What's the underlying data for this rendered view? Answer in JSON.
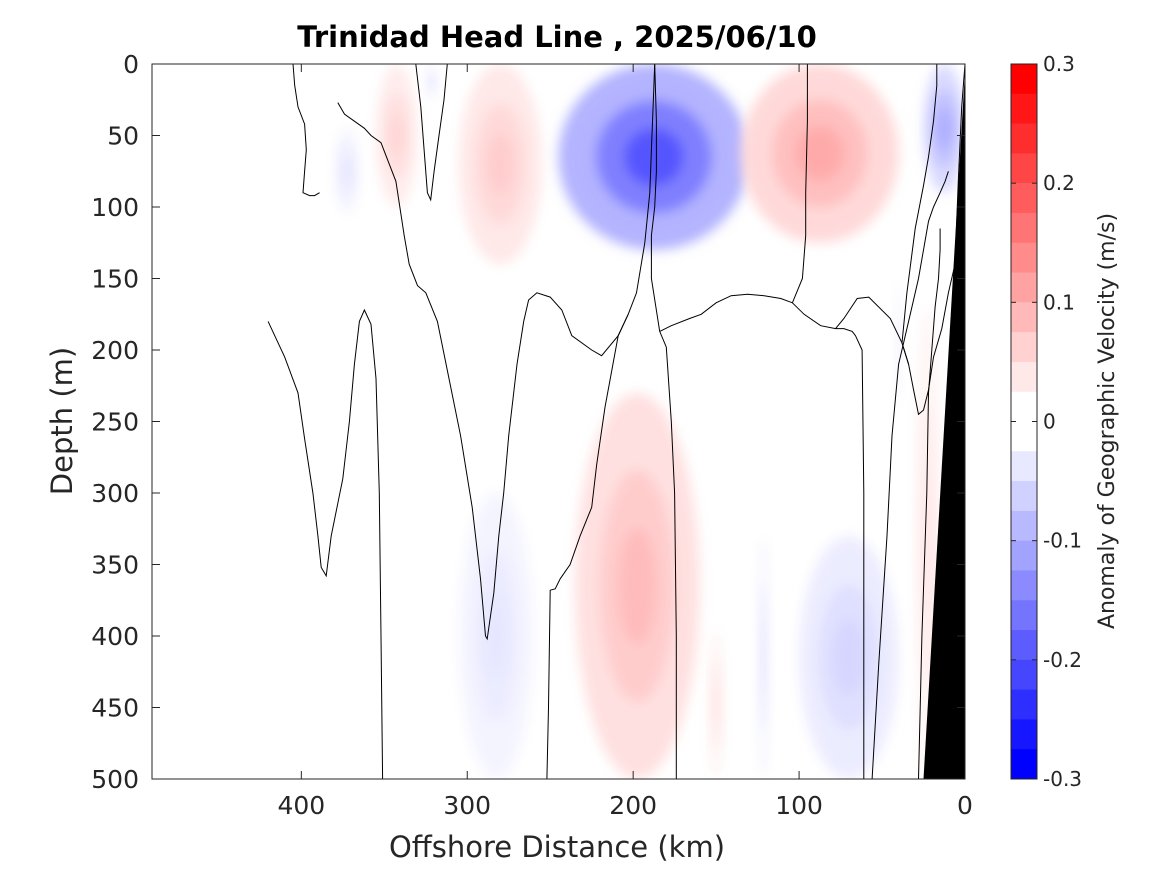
{
  "chart_data": {
    "type": "heatmap",
    "title": "Trinidad Head Line , 2025/06/10",
    "xlabel": "Offshore Distance (km)",
    "ylabel": "Depth (m)",
    "xlim": [
      490,
      0
    ],
    "ylim": [
      0,
      500
    ],
    "x_reversed": true,
    "y_reversed": true,
    "xticks": [
      400,
      300,
      200,
      100,
      0
    ],
    "xtick_labels": [
      "400",
      "300",
      "200",
      "100",
      "0"
    ],
    "yticks": [
      0,
      50,
      100,
      150,
      200,
      250,
      300,
      350,
      400,
      450,
      500
    ],
    "ytick_labels": [
      "0",
      "50",
      "100",
      "150",
      "200",
      "250",
      "300",
      "350",
      "400",
      "450",
      "500"
    ],
    "grid": false,
    "colorbar": {
      "label": "Anomaly of Geographic Velocity (m/s)",
      "range": [
        -0.3,
        0.3
      ],
      "levels": 24,
      "ticks": [
        0.3,
        0.2,
        0.1,
        0,
        -0.1,
        -0.2,
        -0.3
      ],
      "tick_labels": [
        "0.3",
        "0.2",
        "0.1",
        "0",
        "-0.1",
        "-0.2",
        "-0.3"
      ]
    },
    "colors": {
      "positive": "#ff0000",
      "negative": "#0000ff",
      "zero": "#ffffff",
      "bathymetry": "#000000",
      "contour": "#000000"
    },
    "anomaly_features": [
      {
        "sign": "positive",
        "x_range": [
          355,
          330
        ],
        "depth_range": [
          0,
          100
        ],
        "peak": 0.05
      },
      {
        "sign": "negative",
        "x_range": [
          380,
          365
        ],
        "depth_range": [
          45,
          105
        ],
        "peak": -0.03
      },
      {
        "sign": "negative",
        "x_range": [
          325,
          318
        ],
        "depth_range": [
          0,
          25
        ],
        "peak": -0.03
      },
      {
        "sign": "positive",
        "x_range": [
          305,
          255
        ],
        "depth_range": [
          0,
          140
        ],
        "peak": 0.06
      },
      {
        "sign": "negative",
        "x_range": [
          245,
          130
        ],
        "depth_range": [
          0,
          130
        ],
        "peak": -0.2
      },
      {
        "sign": "positive",
        "x_range": [
          135,
          40
        ],
        "depth_range": [
          0,
          125
        ],
        "peak": 0.1
      },
      {
        "sign": "negative",
        "x_range": [
          25,
          0
        ],
        "depth_range": [
          0,
          90
        ],
        "peak": -0.1
      },
      {
        "sign": "positive",
        "x_range": [
          235,
          160
        ],
        "depth_range": [
          230,
          500
        ],
        "peak": 0.08
      },
      {
        "sign": "positive",
        "x_range": [
          155,
          145
        ],
        "depth_range": [
          395,
          500
        ],
        "peak": 0.03
      },
      {
        "sign": "negative",
        "x_range": [
          305,
          260
        ],
        "depth_range": [
          300,
          500
        ],
        "peak": -0.03
      },
      {
        "sign": "negative",
        "x_range": [
          125,
          118
        ],
        "depth_range": [
          330,
          500
        ],
        "peak": -0.03
      },
      {
        "sign": "negative",
        "x_range": [
          100,
          40
        ],
        "depth_range": [
          330,
          500
        ],
        "peak": -0.05
      },
      {
        "sign": "negative",
        "x_range": [
          42,
          38
        ],
        "depth_range": [
          150,
          240
        ],
        "peak": -0.02
      },
      {
        "sign": "positive",
        "x_range": [
          30,
          15
        ],
        "depth_range": [
          170,
          500
        ],
        "peak": 0.03
      }
    ],
    "zero_contours_x_depth": [
      [
        [
          420,
          180
        ],
        [
          410,
          205
        ],
        [
          402,
          230
        ],
        [
          398,
          262
        ],
        [
          393,
          300
        ],
        [
          390,
          330
        ],
        [
          388,
          352
        ],
        [
          385,
          358
        ],
        [
          382,
          330
        ],
        [
          375,
          290
        ],
        [
          371,
          250
        ],
        [
          368,
          210
        ],
        [
          365,
          180
        ],
        [
          362,
          172
        ],
        [
          358,
          182
        ],
        [
          355,
          220
        ],
        [
          353,
          300
        ],
        [
          352,
          400
        ],
        [
          351,
          500
        ]
      ],
      [
        [
          405,
          0
        ],
        [
          404,
          15
        ],
        [
          402,
          30
        ],
        [
          398,
          42
        ],
        [
          397,
          60
        ],
        [
          398,
          75
        ],
        [
          399,
          90
        ],
        [
          395,
          92
        ],
        [
          392,
          92
        ],
        [
          389,
          90
        ]
      ],
      [
        [
          331,
          0
        ],
        [
          328,
          30
        ],
        [
          326,
          60
        ],
        [
          324,
          90
        ],
        [
          322,
          95
        ],
        [
          320,
          75
        ],
        [
          317,
          50
        ],
        [
          314,
          25
        ],
        [
          312,
          0
        ]
      ],
      [
        [
          378,
          27
        ],
        [
          374,
          35
        ],
        [
          368,
          40
        ],
        [
          362,
          45
        ],
        [
          358,
          50
        ],
        [
          352,
          55
        ],
        [
          343,
          82
        ],
        [
          338,
          120
        ],
        [
          335,
          140
        ],
        [
          330,
          155
        ],
        [
          325,
          160
        ],
        [
          318,
          180
        ],
        [
          311,
          220
        ],
        [
          304,
          260
        ],
        [
          297,
          310
        ],
        [
          292,
          360
        ],
        [
          289,
          400
        ],
        [
          288,
          402
        ],
        [
          284,
          370
        ],
        [
          281,
          330
        ],
        [
          278,
          300
        ],
        [
          275,
          260
        ],
        [
          270,
          210
        ],
        [
          266,
          180
        ],
        [
          263,
          165
        ],
        [
          258,
          160
        ],
        [
          250,
          163
        ],
        [
          243,
          172
        ],
        [
          237,
          190
        ],
        [
          225,
          200
        ],
        [
          219,
          204
        ],
        [
          209,
          190
        ],
        [
          203,
          175
        ],
        [
          198,
          160
        ],
        [
          193,
          125
        ],
        [
          190,
          90
        ],
        [
          189,
          60
        ],
        [
          188,
          30
        ],
        [
          187,
          0
        ]
      ],
      [
        [
          203,
          175
        ],
        [
          209,
          190
        ],
        [
          217,
          240
        ],
        [
          222,
          280
        ],
        [
          225,
          310
        ],
        [
          232,
          330
        ],
        [
          238,
          350
        ],
        [
          244,
          360
        ],
        [
          247,
          367
        ],
        [
          250,
          368
        ],
        [
          251,
          450
        ],
        [
          252,
          500
        ]
      ],
      [
        [
          187,
          0
        ],
        [
          186,
          40
        ],
        [
          186,
          75
        ],
        [
          187,
          100
        ],
        [
          189,
          120
        ],
        [
          189,
          150
        ],
        [
          184,
          187
        ],
        [
          180,
          198
        ],
        [
          177,
          250
        ],
        [
          175,
          300
        ],
        [
          174,
          400
        ],
        [
          174,
          500
        ]
      ],
      [
        [
          184,
          187
        ],
        [
          177,
          183
        ],
        [
          166,
          178
        ],
        [
          159,
          175
        ],
        [
          150,
          167
        ],
        [
          141,
          162
        ],
        [
          131,
          161
        ],
        [
          121,
          162
        ],
        [
          111,
          164
        ],
        [
          104,
          167
        ],
        [
          98,
          150
        ],
        [
          96,
          120
        ],
        [
          96,
          90
        ],
        [
          95,
          40
        ],
        [
          95,
          0
        ]
      ],
      [
        [
          104,
          167
        ],
        [
          97,
          175
        ],
        [
          87,
          183
        ],
        [
          78,
          185
        ],
        [
          73,
          185
        ],
        [
          68,
          187
        ],
        [
          66,
          190
        ],
        [
          62,
          200
        ],
        [
          61,
          300
        ],
        [
          61,
          400
        ],
        [
          61,
          500
        ]
      ],
      [
        [
          78,
          185
        ],
        [
          73,
          178
        ],
        [
          65,
          164
        ],
        [
          58,
          163
        ],
        [
          45,
          178
        ],
        [
          38,
          195
        ],
        [
          34,
          210
        ],
        [
          31,
          228
        ],
        [
          28,
          245
        ],
        [
          25,
          242
        ],
        [
          22,
          228
        ],
        [
          19,
          205
        ],
        [
          14,
          185
        ],
        [
          10,
          160
        ],
        [
          6,
          140
        ],
        [
          4,
          80
        ],
        [
          2,
          30
        ],
        [
          0,
          0
        ]
      ],
      [
        [
          34,
          210
        ],
        [
          38,
          195
        ],
        [
          35,
          160
        ],
        [
          30,
          115
        ],
        [
          25,
          85
        ],
        [
          22,
          65
        ],
        [
          19,
          40
        ],
        [
          17,
          15
        ],
        [
          17,
          0
        ]
      ],
      [
        [
          56,
          500
        ],
        [
          52,
          420
        ],
        [
          47,
          330
        ],
        [
          44,
          260
        ],
        [
          40,
          210
        ],
        [
          34,
          180
        ],
        [
          28,
          150
        ],
        [
          25,
          130
        ],
        [
          22,
          110
        ],
        [
          19,
          100
        ],
        [
          15,
          90
        ],
        [
          12,
          82
        ],
        [
          10,
          75
        ]
      ],
      [
        [
          28,
          500
        ],
        [
          26,
          400
        ],
        [
          23,
          300
        ],
        [
          22,
          230
        ],
        [
          20,
          200
        ],
        [
          18,
          170
        ],
        [
          16,
          150
        ],
        [
          15,
          130
        ],
        [
          15,
          115
        ]
      ]
    ],
    "bathymetry_polygon_x_depth": [
      [
        0,
        5
      ],
      [
        25,
        500
      ],
      [
        0,
        500
      ]
    ]
  }
}
